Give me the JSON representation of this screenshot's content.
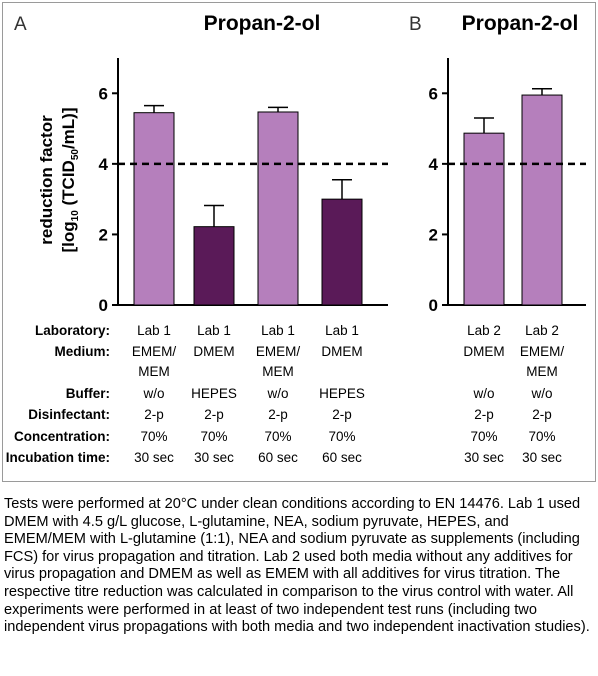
{
  "panels": [
    {
      "letter": "A",
      "title": "Propan-2-ol"
    },
    {
      "letter": "B",
      "title": "Propan-2-ol"
    }
  ],
  "ylabel_line1": "reduction factor",
  "ylabel_line2_prefix": "[log",
  "ylabel_line2_sub": "10",
  "ylabel_line2_mid": " (TCID",
  "ylabel_line2_sub2": "50",
  "ylabel_line2_suffix": "/mL)]",
  "table_headers": [
    "Laboratory:",
    "Medium:",
    "Buffer:",
    "Disinfectant:",
    "Concentration:",
    "Incubation time:"
  ],
  "colors": {
    "light": "#b57fbc",
    "dark": "#5a1a58"
  },
  "chart_data": [
    {
      "type": "bar",
      "panel": "A",
      "title": "Propan-2-ol",
      "ylabel": "reduction factor [log10 (TCID50/mL)]",
      "ylim": [
        0,
        7
      ],
      "yticks": [
        0,
        2,
        4,
        6
      ],
      "threshold": 4,
      "bars": [
        {
          "value": 5.45,
          "error": 0.2,
          "color": "light",
          "laboratory": "Lab 1",
          "medium": [
            "EMEM/",
            "MEM"
          ],
          "buffer": "w/o",
          "disinfectant": "2-p",
          "concentration": "70%",
          "time": "30 sec"
        },
        {
          "value": 2.22,
          "error": 0.6,
          "color": "dark",
          "laboratory": "Lab 1",
          "medium": [
            "DMEM"
          ],
          "buffer": "HEPES",
          "disinfectant": "2-p",
          "concentration": "70%",
          "time": "30 sec"
        },
        {
          "value": 5.47,
          "error": 0.13,
          "color": "light",
          "laboratory": "Lab 1",
          "medium": [
            "EMEM/",
            "MEM"
          ],
          "buffer": "w/o",
          "disinfectant": "2-p",
          "concentration": "70%",
          "time": "60 sec"
        },
        {
          "value": 3.0,
          "error": 0.55,
          "color": "dark",
          "laboratory": "Lab 1",
          "medium": [
            "DMEM"
          ],
          "buffer": "HEPES",
          "disinfectant": "2-p",
          "concentration": "70%",
          "time": "60 sec"
        }
      ]
    },
    {
      "type": "bar",
      "panel": "B",
      "title": "Propan-2-ol",
      "ylim": [
        0,
        7
      ],
      "yticks": [
        0,
        2,
        4,
        6
      ],
      "threshold": 4,
      "bars": [
        {
          "value": 4.87,
          "error": 0.43,
          "color": "light",
          "laboratory": "Lab 2",
          "medium": [
            "DMEM"
          ],
          "buffer": "w/o",
          "disinfectant": "2-p",
          "concentration": "70%",
          "time": "30 sec"
        },
        {
          "value": 5.95,
          "error": 0.18,
          "color": "light",
          "laboratory": "Lab 2",
          "medium": [
            "EMEM/",
            "MEM"
          ],
          "buffer": "w/o",
          "disinfectant": "2-p",
          "concentration": "70%",
          "time": "30 sec"
        }
      ]
    }
  ],
  "caption": "Tests were performed at 20°C under clean conditions according to EN 14476. Lab 1 used DMEM with 4.5 g/L glucose, L-glutamine, NEA, sodium pyruvate, HEPES, and EMEM/MEM with L-glutamine (1:1), NEA and sodium pyruvate as supplements (including FCS) for virus propagation and titration. Lab 2 used both media without any additives for virus propagation and DMEM as well as EMEM with all additives for virus titration. The respective titre reduction was calculated in comparison to the virus control with water. All experiments were performed in at least of two independent test runs (including two independent virus propagations with both media and two independent inactivation studies)."
}
